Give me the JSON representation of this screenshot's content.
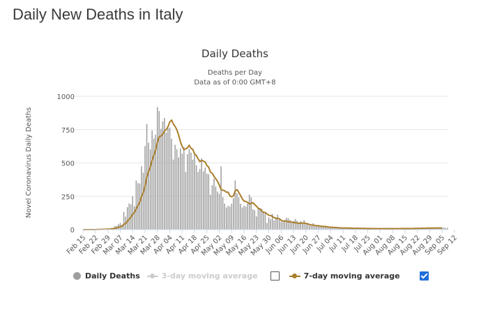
{
  "page_heading": "Daily New Deaths in Italy",
  "chart_data": {
    "type": "bar",
    "title": "Daily Deaths",
    "subtitle_line1": "Deaths per Day",
    "subtitle_line2": "Data as of 0:00 GMT+8",
    "ylabel": "Novel Coronavirus Daily Deaths",
    "xlabel": "",
    "ylim": [
      0,
      1000
    ],
    "y_ticks": [
      0,
      250,
      500,
      750,
      1000
    ],
    "x_ticks": [
      "Feb 15",
      "Feb 22",
      "Feb 29",
      "Mar 07",
      "Mar 14",
      "Mar 21",
      "Mar 28",
      "Apr 04",
      "Apr 11",
      "Apr 18",
      "Apr 25",
      "May 02",
      "May 09",
      "May 16",
      "May 23",
      "May 30",
      "Jun 06",
      "Jun 13",
      "Jun 20",
      "Jun 27",
      "Jul 04",
      "Jul 11",
      "Jul 18",
      "Jul 25",
      "Aug 01",
      "Aug 08",
      "Aug 15",
      "Aug 22",
      "Aug 29",
      "Sep 05",
      "Sep 12"
    ],
    "start_date": "Feb 15",
    "bar_color": "#9e9e9e",
    "line_color": "#a97e2b",
    "series": [
      {
        "name": "Daily Deaths",
        "values": [
          0,
          0,
          0,
          0,
          0,
          0,
          0,
          1,
          2,
          3,
          4,
          4,
          2,
          5,
          4,
          8,
          12,
          11,
          27,
          28,
          41,
          49,
          36,
          133,
          97,
          168,
          196,
          189,
          250,
          175,
          368,
          349,
          345,
          475,
          427,
          627,
          793,
          651,
          601,
          743,
          683,
          712,
          919,
          889,
          756,
          812,
          837,
          727,
          760,
          766,
          681,
          525,
          636,
          604,
          542,
          610,
          570,
          619,
          431,
          566,
          602,
          578,
          525,
          575,
          482,
          433,
          454,
          534,
          437,
          464,
          420,
          415,
          260,
          333,
          382,
          323,
          285,
          269,
          474,
          243,
          194,
          165,
          179,
          172,
          195,
          236,
          369,
          274,
          243,
          194,
          165,
          179,
          172,
          195,
          262,
          242,
          153,
          145,
          99,
          162,
          161,
          156,
          130,
          119,
          50,
          92,
          78,
          117,
          70,
          87,
          111,
          75,
          60,
          55,
          71,
          88,
          85,
          72,
          53,
          65,
          79,
          66,
          47,
          64,
          56,
          71,
          46,
          49,
          30,
          34,
          47,
          24,
          26,
          30,
          23,
          21,
          22,
          30,
          15,
          13,
          21,
          22,
          11,
          20,
          12,
          15,
          13,
          8,
          17,
          9,
          14,
          11,
          13,
          9,
          5,
          15,
          11,
          8,
          12,
          7,
          6,
          8,
          5,
          9,
          10,
          11,
          6,
          4,
          7,
          9,
          5,
          3,
          11,
          8,
          6,
          5,
          9,
          4,
          7,
          5,
          9,
          6,
          10,
          4,
          12,
          7,
          5,
          9,
          6,
          8,
          10,
          7,
          11,
          12,
          9,
          14,
          10,
          8,
          13,
          15,
          12,
          9,
          13,
          14,
          16,
          12,
          14
        ]
      },
      {
        "name": "3-day moving average",
        "hidden": true
      },
      {
        "name": "7-day moving average",
        "values": [
          0,
          0,
          0,
          0,
          0,
          0,
          0,
          0,
          1,
          1,
          2,
          2,
          2,
          3,
          3,
          4,
          5,
          7,
          10,
          12,
          17,
          22,
          25,
          39,
          45,
          62,
          78,
          92,
          116,
          128,
          154,
          182,
          204,
          247,
          277,
          326,
          393,
          436,
          470,
          519,
          558,
          597,
          654,
          696,
          701,
          716,
          738,
          750,
          773,
          807,
          822,
          792,
          774,
          749,
          709,
          659,
          624,
          600,
          606,
          613,
          633,
          609,
          602,
          567,
          557,
          531,
          510,
          519,
          514,
          507,
          480,
          469,
          431,
          422,
          399,
          381,
          362,
          334,
          301,
          295,
          292,
          280,
          281,
          253,
          246,
          253,
          292,
          300,
          280,
          256,
          231,
          214,
          211,
          204,
          193,
          196,
          202,
          188,
          176,
          160,
          154,
          141,
          129,
          128,
          117,
          107,
          106,
          98,
          90,
          85,
          84,
          81,
          71,
          62,
          66,
          62,
          58,
          59,
          56,
          53,
          51,
          50,
          47,
          48,
          49,
          49,
          46,
          43,
          38,
          35,
          34,
          31,
          29,
          29,
          26,
          25,
          23,
          23,
          20,
          19,
          17,
          17,
          16,
          15,
          14,
          13,
          12,
          12,
          12,
          11,
          11,
          11,
          10,
          10,
          10,
          10,
          9,
          9,
          9,
          9,
          8,
          8,
          8,
          8,
          7,
          7,
          7,
          7,
          7,
          7,
          7,
          7,
          7,
          7,
          7,
          7,
          7,
          7,
          7,
          7,
          8,
          8,
          8,
          8,
          8,
          8,
          8,
          8,
          9,
          9,
          9,
          9,
          10,
          10,
          10,
          11,
          11,
          11,
          11,
          12,
          12,
          12,
          12,
          12
        ]
      }
    ],
    "legend": {
      "placement": "bottom-left",
      "items": [
        {
          "label": "Daily Deaths",
          "active": true
        },
        {
          "label": "3-day moving average",
          "active": false,
          "checkbox_checked": false
        },
        {
          "label": "7-day moving average",
          "active": true,
          "checkbox_checked": true
        }
      ]
    }
  }
}
